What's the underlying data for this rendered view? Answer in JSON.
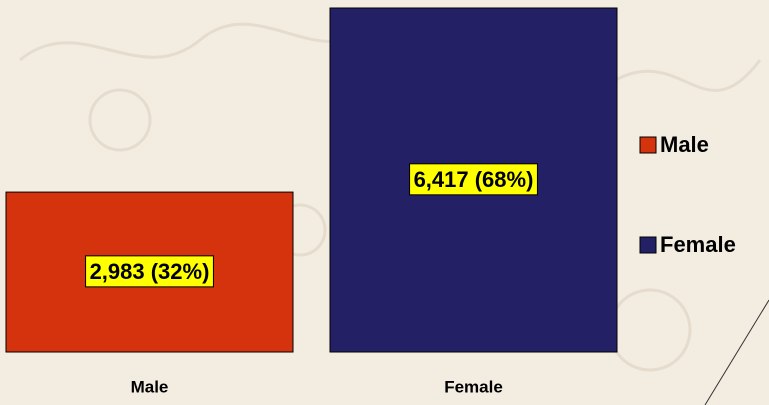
{
  "chart_data": {
    "type": "bar",
    "categories": [
      "Male",
      "Female"
    ],
    "series": [
      {
        "name": "Male",
        "color": "#d4330e"
      },
      {
        "name": "Female",
        "color": "#232066"
      }
    ],
    "values": [
      2983,
      6417
    ],
    "value_labels": [
      "2,983 (32%)",
      "6,417 (68%)"
    ],
    "legend": "right"
  }
}
